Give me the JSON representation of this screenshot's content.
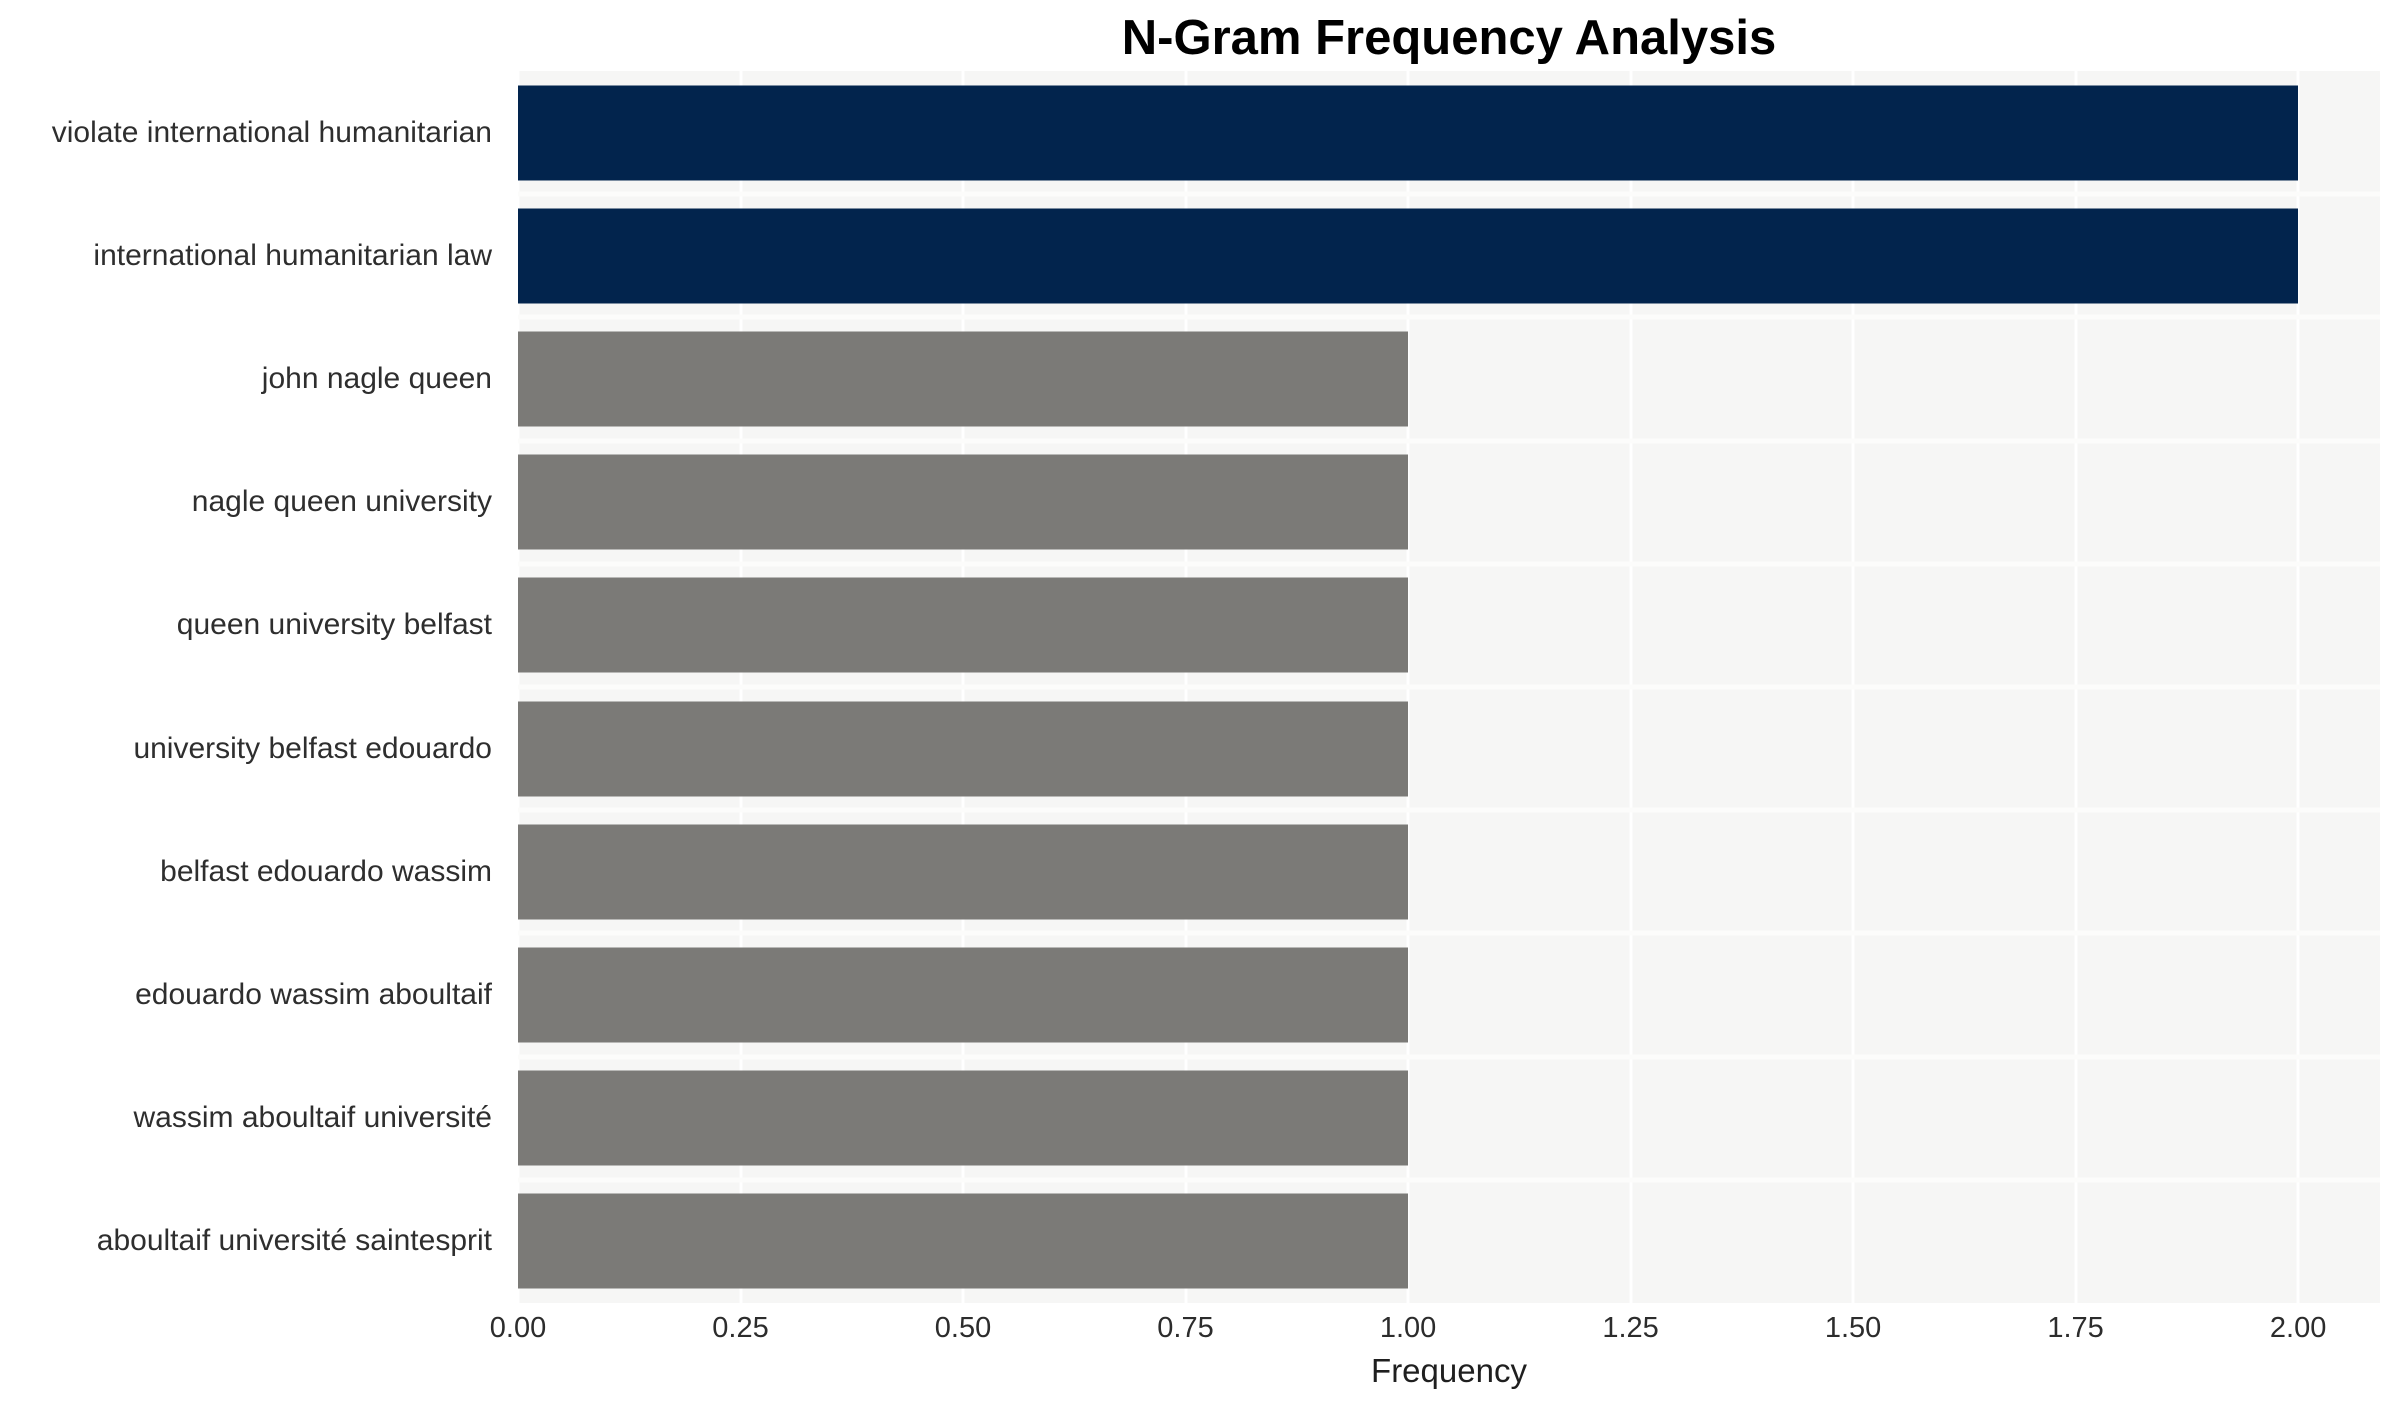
{
  "title": "N-Gram Frequency Analysis",
  "axes": {
    "xlabel": "Frequency"
  },
  "chart_data": {
    "type": "bar",
    "orientation": "horizontal",
    "title": "N-Gram Frequency Analysis",
    "xlabel": "Frequency",
    "ylabel": "",
    "categories": [
      "violate international humanitarian",
      "international humanitarian law",
      "john nagle queen",
      "nagle queen university",
      "queen university belfast",
      "university belfast edouardo",
      "belfast edouardo wassim",
      "edouardo wassim aboultaif",
      "wassim aboultaif université",
      "aboultaif université saintesprit"
    ],
    "values": [
      2,
      2,
      1,
      1,
      1,
      1,
      1,
      1,
      1,
      1
    ],
    "bar_colors": [
      "#02244d",
      "#02244d",
      "#7b7a77",
      "#7b7a77",
      "#7b7a77",
      "#7b7a77",
      "#7b7a77",
      "#7b7a77",
      "#7b7a77",
      "#7b7a77"
    ],
    "xlim": [
      0,
      2.092
    ],
    "x_tick_values": [
      0,
      0.25,
      0.5,
      0.75,
      1.0,
      1.25,
      1.5,
      1.75,
      2.0
    ],
    "x_tick_labels": [
      "0.00",
      "0.25",
      "0.50",
      "0.75",
      "1.00",
      "1.25",
      "1.50",
      "1.75",
      "2.00"
    ],
    "grid": true,
    "legend": false,
    "colors": {
      "highlight": "#02244d",
      "default_bar": "#7b7a77",
      "panel_background": "#f6f6f5",
      "gridline": "#ffffff",
      "label_text": "#2e2e2e",
      "tick_text": "#2c2c2c",
      "title_text": "#000000"
    }
  }
}
